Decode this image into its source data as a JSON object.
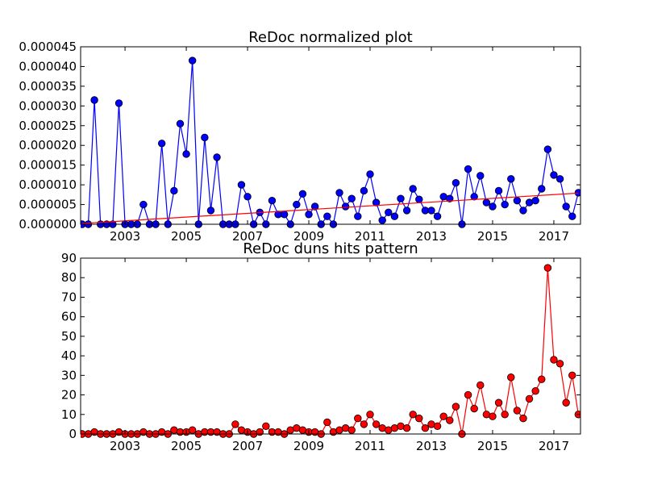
{
  "chart_data": [
    {
      "type": "line",
      "title": "ReDoc normalized plot",
      "xlim": [
        2001.55,
        2017.87
      ],
      "xticks": [
        2003,
        2005,
        2007,
        2009,
        2011,
        2013,
        2015,
        2017
      ],
      "ylim": [
        0,
        4.5e-05
      ],
      "yticks": [
        {
          "value": 0,
          "label": "0.000000"
        },
        {
          "value": 5e-06,
          "label": "0.000005"
        },
        {
          "value": 1e-05,
          "label": "0.000010"
        },
        {
          "value": 1.5e-05,
          "label": "0.000015"
        },
        {
          "value": 2e-05,
          "label": "0.000020"
        },
        {
          "value": 2.5e-05,
          "label": "0.000025"
        },
        {
          "value": 3e-05,
          "label": "0.000030"
        },
        {
          "value": 3.5e-05,
          "label": "0.000035"
        },
        {
          "value": 4e-05,
          "label": "0.000040"
        },
        {
          "value": 4.5e-05,
          "label": "0.000045"
        }
      ],
      "x": [
        2001.6,
        2001.8,
        2002.0,
        2002.2,
        2002.4,
        2002.6,
        2002.8,
        2003.0,
        2003.2,
        2003.4,
        2003.6,
        2003.8,
        2004.0,
        2004.2,
        2004.4,
        2004.6,
        2004.8,
        2005.0,
        2005.2,
        2005.4,
        2005.6,
        2005.8,
        2006.0,
        2006.2,
        2006.4,
        2006.6,
        2006.8,
        2007.0,
        2007.2,
        2007.4,
        2007.6,
        2007.8,
        2008.0,
        2008.2,
        2008.4,
        2008.6,
        2008.8,
        2009.0,
        2009.2,
        2009.4,
        2009.6,
        2009.8,
        2010.0,
        2010.2,
        2010.4,
        2010.6,
        2010.8,
        2011.0,
        2011.2,
        2011.4,
        2011.6,
        2011.8,
        2012.0,
        2012.2,
        2012.4,
        2012.6,
        2012.8,
        2013.0,
        2013.2,
        2013.4,
        2013.6,
        2013.8,
        2014.0,
        2014.2,
        2014.4,
        2014.6,
        2014.8,
        2015.0,
        2015.2,
        2015.4,
        2015.6,
        2015.8,
        2016.0,
        2016.2,
        2016.4,
        2016.6,
        2016.8,
        2017.0,
        2017.2,
        2017.4,
        2017.6,
        2017.8
      ],
      "series": [
        {
          "color": "#0000ff",
          "marker": true,
          "values": [
            0,
            0,
            3.15e-05,
            0,
            0,
            0,
            3.07e-05,
            0,
            0,
            0,
            5e-06,
            0,
            0,
            2.05e-05,
            0,
            8.5e-06,
            2.55e-05,
            1.78e-05,
            4.15e-05,
            0,
            2.2e-05,
            3.5e-06,
            1.7e-05,
            0,
            0,
            0,
            1e-05,
            7e-06,
            0,
            3e-06,
            0,
            6e-06,
            2.5e-06,
            2.5e-06,
            0,
            5e-06,
            7.7e-06,
            2.5e-06,
            4.5e-06,
            0,
            2e-06,
            0,
            8e-06,
            4.5e-06,
            6.5e-06,
            2e-06,
            8.5e-06,
            1.27e-05,
            5.5e-06,
            1e-06,
            3e-06,
            2e-06,
            6.5e-06,
            3.5e-06,
            9e-06,
            6.3e-06,
            3.5e-06,
            3.5e-06,
            2e-06,
            7e-06,
            6.5e-06,
            1.05e-05,
            0,
            1.4e-05,
            7e-06,
            1.23e-05,
            5.5e-06,
            4.5e-06,
            8.5e-06,
            5e-06,
            1.15e-05,
            6e-06,
            3.5e-06,
            5.5e-06,
            6e-06,
            9e-06,
            1.9e-05,
            1.25e-05,
            1.15e-05,
            4.5e-06,
            2e-06,
            8e-06
          ]
        },
        {
          "color": "#ff0000",
          "marker": false,
          "x": [
            2001.6,
            2017.8
          ],
          "values": [
            2e-07,
            7.9e-06
          ]
        }
      ]
    },
    {
      "type": "line",
      "title": "ReDoc duns hits pattern",
      "xlim": [
        2001.55,
        2017.87
      ],
      "xticks": [
        2003,
        2005,
        2007,
        2009,
        2011,
        2013,
        2015,
        2017
      ],
      "ylim": [
        0,
        90
      ],
      "yticks": [
        0,
        10,
        20,
        30,
        40,
        50,
        60,
        70,
        80,
        90
      ],
      "x": [
        2001.6,
        2001.8,
        2002.0,
        2002.2,
        2002.4,
        2002.6,
        2002.8,
        2003.0,
        2003.2,
        2003.4,
        2003.6,
        2003.8,
        2004.0,
        2004.2,
        2004.4,
        2004.6,
        2004.8,
        2005.0,
        2005.2,
        2005.4,
        2005.6,
        2005.8,
        2006.0,
        2006.2,
        2006.4,
        2006.6,
        2006.8,
        2007.0,
        2007.2,
        2007.4,
        2007.6,
        2007.8,
        2008.0,
        2008.2,
        2008.4,
        2008.6,
        2008.8,
        2009.0,
        2009.2,
        2009.4,
        2009.6,
        2009.8,
        2010.0,
        2010.2,
        2010.4,
        2010.6,
        2010.8,
        2011.0,
        2011.2,
        2011.4,
        2011.6,
        2011.8,
        2012.0,
        2012.2,
        2012.4,
        2012.6,
        2012.8,
        2013.0,
        2013.2,
        2013.4,
        2013.6,
        2013.8,
        2014.0,
        2014.2,
        2014.4,
        2014.6,
        2014.8,
        2015.0,
        2015.2,
        2015.4,
        2015.6,
        2015.8,
        2016.0,
        2016.2,
        2016.4,
        2016.6,
        2016.8,
        2017.0,
        2017.2,
        2017.4,
        2017.6,
        2017.8
      ],
      "series": [
        {
          "color": "#ff0000",
          "marker": true,
          "values": [
            0,
            0,
            1,
            0,
            0,
            0,
            1,
            0,
            0,
            0,
            1,
            0,
            0,
            1,
            0,
            2,
            1,
            1,
            2,
            0,
            1,
            1,
            1,
            0,
            0,
            5,
            2,
            1,
            0,
            1,
            4,
            1,
            1,
            0,
            2,
            3,
            2,
            1,
            1,
            0,
            6,
            1,
            2,
            3,
            2,
            8,
            5,
            10,
            5,
            3,
            2,
            3,
            4,
            3,
            10,
            8,
            3,
            5,
            4,
            9,
            7,
            14,
            0,
            20,
            13,
            25,
            10,
            9,
            16,
            10,
            29,
            12,
            8,
            18,
            22,
            28,
            85,
            38,
            36,
            16,
            30,
            10
          ]
        }
      ]
    }
  ]
}
